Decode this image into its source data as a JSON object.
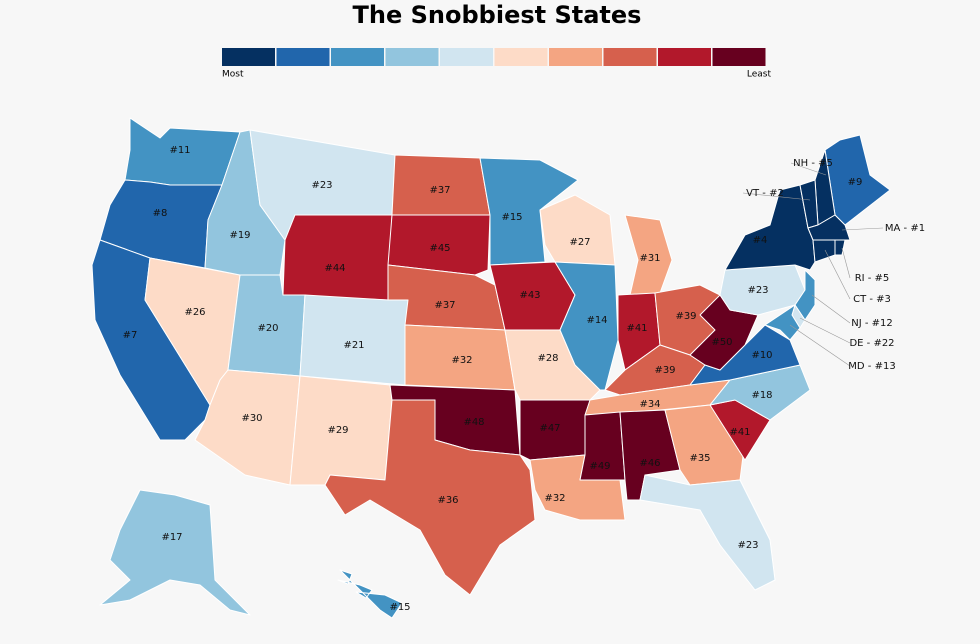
{
  "chart_data": {
    "type": "choropleth",
    "title": "The Snobbiest States",
    "legend": {
      "low_label": "Most",
      "high_label": "Least",
      "colors": [
        "#053061",
        "#2166ac",
        "#4393c3",
        "#92c5de",
        "#d1e5f0",
        "#fddbc7",
        "#f4a582",
        "#d6604d",
        "#b2182b",
        "#67001f"
      ]
    },
    "values": [
      11,
      8,
      7,
      26,
      19,
      23,
      44,
      20,
      21,
      30,
      29,
      37,
      45,
      37,
      32,
      48,
      36,
      15,
      43,
      28,
      47,
      32,
      27,
      14,
      31,
      41,
      39,
      39,
      34,
      49,
      46,
      35,
      23,
      41,
      18,
      10,
      50,
      23,
      4,
      9,
      17,
      15,
      5,
      2,
      1,
      5,
      3,
      12,
      22,
      13
    ],
    "value_labels": [
      "#11",
      "#8",
      "#7",
      "#26",
      "#19",
      "#23",
      "#44",
      "#20",
      "#21",
      "#30",
      "#29",
      "#37",
      "#45",
      "#37",
      "#32",
      "#48",
      "#36",
      "#15",
      "#43",
      "#28",
      "#47",
      "#32",
      "#27",
      "#14",
      "#31",
      "#41",
      "#39",
      "#39",
      "#34",
      "#49",
      "#46",
      "#35",
      "#23",
      "#41",
      "#18",
      "#10",
      "#50",
      "#23",
      "#4",
      "#9",
      "#17",
      "#15",
      "NH - #5",
      "VT - #2",
      "MA - #1",
      "RI - #5",
      "CT - #3",
      "NJ - #12",
      "DE - #22",
      "MD - #13"
    ]
  }
}
